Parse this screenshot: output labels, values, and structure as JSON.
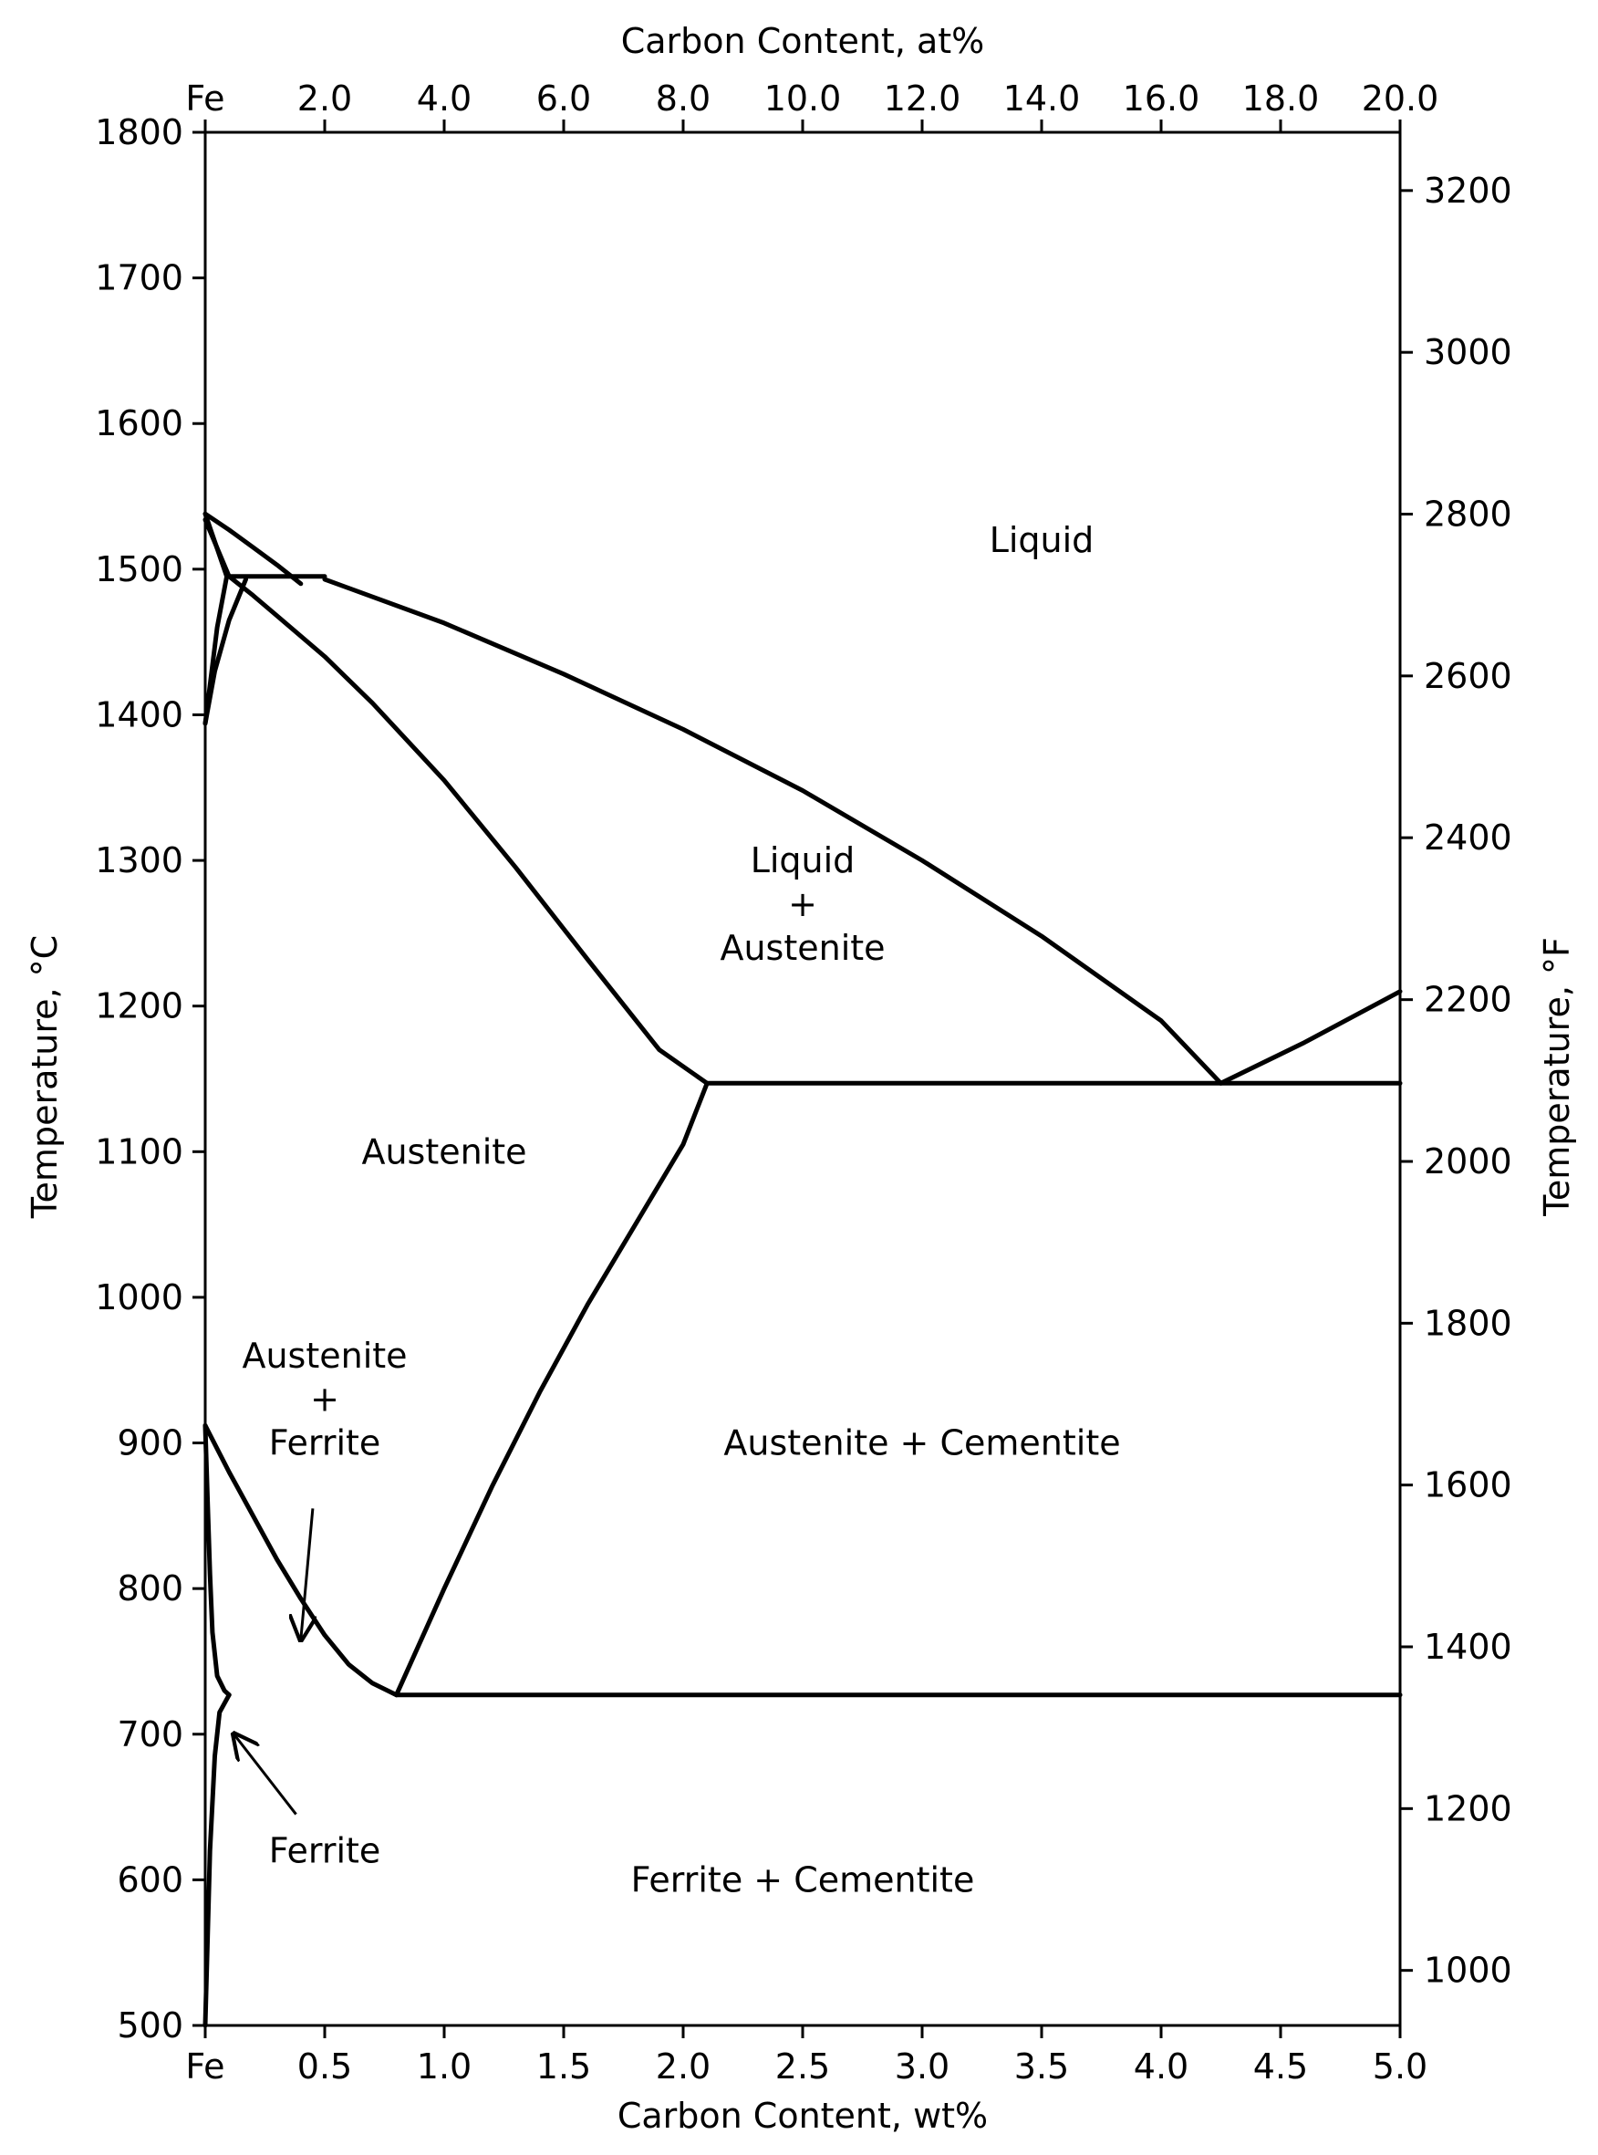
{
  "chart_data": {
    "type": "line",
    "title": "",
    "xlabel": "Carbon Content, wt%",
    "xlabel_top": "Carbon Content, at%",
    "ylabel": "Temperature, °C",
    "ylabel_right": "Temperature, °F",
    "xlim": [
      0,
      5
    ],
    "ylim": [
      500,
      1800
    ],
    "grid": false,
    "x_ticks": [
      {
        "value": 0,
        "label": "Fe"
      },
      {
        "value": 0.5,
        "label": "0.5"
      },
      {
        "value": 1.0,
        "label": "1.0"
      },
      {
        "value": 1.5,
        "label": "1.5"
      },
      {
        "value": 2.0,
        "label": "2.0"
      },
      {
        "value": 2.5,
        "label": "2.5"
      },
      {
        "value": 3.0,
        "label": "3.0"
      },
      {
        "value": 3.5,
        "label": "3.5"
      },
      {
        "value": 4.0,
        "label": "4.0"
      },
      {
        "value": 4.5,
        "label": "4.5"
      },
      {
        "value": 5.0,
        "label": "5.0"
      }
    ],
    "x_top_ticks": [
      {
        "value": 0,
        "label": "Fe"
      },
      {
        "value": 0.5,
        "label": "2.0"
      },
      {
        "value": 1.0,
        "label": "4.0"
      },
      {
        "value": 1.5,
        "label": "6.0"
      },
      {
        "value": 2.0,
        "label": "8.0"
      },
      {
        "value": 2.5,
        "label": "10.0"
      },
      {
        "value": 3.0,
        "label": "12.0"
      },
      {
        "value": 3.5,
        "label": "14.0"
      },
      {
        "value": 4.0,
        "label": "16.0"
      },
      {
        "value": 4.5,
        "label": "18.0"
      },
      {
        "value": 5.0,
        "label": "20.0"
      }
    ],
    "y_ticks": [
      {
        "value": 500,
        "label": "500"
      },
      {
        "value": 600,
        "label": "600"
      },
      {
        "value": 700,
        "label": "700"
      },
      {
        "value": 800,
        "label": "800"
      },
      {
        "value": 900,
        "label": "900"
      },
      {
        "value": 1000,
        "label": "1000"
      },
      {
        "value": 1100,
        "label": "1100"
      },
      {
        "value": 1200,
        "label": "1200"
      },
      {
        "value": 1300,
        "label": "1300"
      },
      {
        "value": 1400,
        "label": "1400"
      },
      {
        "value": 1500,
        "label": "1500"
      },
      {
        "value": 1600,
        "label": "1600"
      },
      {
        "value": 1700,
        "label": "1700"
      },
      {
        "value": 1800,
        "label": "1800"
      }
    ],
    "y_right_ticks": [
      {
        "value": 537.8,
        "label": "1000"
      },
      {
        "value": 648.9,
        "label": "1200"
      },
      {
        "value": 760.0,
        "label": "1400"
      },
      {
        "value": 871.1,
        "label": "1600"
      },
      {
        "value": 982.2,
        "label": "1800"
      },
      {
        "value": 1093.3,
        "label": "2000"
      },
      {
        "value": 1204.4,
        "label": "2200"
      },
      {
        "value": 1315.6,
        "label": "2400"
      },
      {
        "value": 1426.7,
        "label": "2600"
      },
      {
        "value": 1537.8,
        "label": "2800"
      },
      {
        "value": 1648.9,
        "label": "3000"
      },
      {
        "value": 1760.0,
        "label": "3200"
      }
    ],
    "series": [
      {
        "values": [
          [
            0,
            1534
          ],
          [
            0.1,
            1495
          ],
          [
            0.2,
            1482
          ],
          [
            0.3,
            1468
          ],
          [
            0.5,
            1440
          ],
          [
            0.7,
            1408
          ],
          [
            1.0,
            1355
          ],
          [
            1.3,
            1295
          ],
          [
            1.6,
            1232
          ],
          [
            1.9,
            1170
          ],
          [
            2.1,
            1147
          ]
        ]
      },
      {
        "values": [
          [
            0.5,
            1493
          ],
          [
            1.0,
            1463
          ],
          [
            1.5,
            1428
          ],
          [
            2.0,
            1390
          ],
          [
            2.5,
            1348
          ],
          [
            3.0,
            1300
          ],
          [
            3.5,
            1248
          ],
          [
            4.0,
            1190
          ],
          [
            4.25,
            1147
          ]
        ]
      },
      {
        "values": [
          [
            4.25,
            1147
          ],
          [
            4.6,
            1175
          ],
          [
            5.0,
            1210
          ]
        ]
      },
      {
        "values": [
          [
            2.1,
            1147
          ],
          [
            5.0,
            1147
          ]
        ]
      },
      {
        "values": [
          [
            0.8,
            727
          ],
          [
            5.0,
            727
          ]
        ]
      },
      {
        "values": [
          [
            0,
            1538
          ],
          [
            0.1,
            1527
          ],
          [
            0.2,
            1515
          ],
          [
            0.3,
            1503
          ],
          [
            0.4,
            1490
          ]
        ]
      },
      {
        "values": [
          [
            0.1,
            1495
          ],
          [
            0.5,
            1495
          ]
        ]
      },
      {
        "values": [
          [
            0,
            1538
          ],
          [
            0.09,
            1495
          ]
        ]
      },
      {
        "values": [
          [
            0,
            1394
          ],
          [
            0.05,
            1460
          ],
          [
            0.09,
            1495
          ]
        ]
      },
      {
        "values": [
          [
            0,
            1394
          ],
          [
            0.04,
            1430
          ],
          [
            0.1,
            1465
          ],
          [
            0.17,
            1493
          ]
        ]
      },
      {
        "values": [
          [
            0,
            912
          ],
          [
            0.1,
            880
          ],
          [
            0.2,
            850
          ],
          [
            0.3,
            820
          ],
          [
            0.4,
            793
          ],
          [
            0.5,
            768
          ],
          [
            0.6,
            748
          ],
          [
            0.7,
            735
          ],
          [
            0.8,
            727
          ]
        ]
      },
      {
        "values": [
          [
            0.8,
            727
          ],
          [
            1.0,
            800
          ],
          [
            1.2,
            870
          ],
          [
            1.4,
            935
          ],
          [
            1.6,
            995
          ],
          [
            1.8,
            1050
          ],
          [
            2.0,
            1105
          ],
          [
            2.1,
            1147
          ]
        ]
      },
      {
        "values": [
          [
            0,
            912
          ],
          [
            0.01,
            860
          ],
          [
            0.02,
            810
          ],
          [
            0.03,
            770
          ],
          [
            0.05,
            740
          ],
          [
            0.08,
            730
          ],
          [
            0.1,
            727
          ]
        ]
      },
      {
        "values": [
          [
            0,
            500
          ],
          [
            0.02,
            620
          ],
          [
            0.04,
            685
          ],
          [
            0.06,
            715
          ],
          [
            0.1,
            727
          ]
        ]
      }
    ],
    "annotations": [
      {
        "text": "Liquid",
        "x": 3.5,
        "y": 1520
      },
      {
        "text": "Liquid",
        "x": 2.5,
        "y": 1300
      },
      {
        "text": "+",
        "x": 2.5,
        "y": 1270
      },
      {
        "text": "Austenite",
        "x": 2.5,
        "y": 1240
      },
      {
        "text": "Austenite",
        "x": 1.0,
        "y": 1100
      },
      {
        "text": "Austenite",
        "x": 0.5,
        "y": 960
      },
      {
        "text": "+",
        "x": 0.5,
        "y": 930
      },
      {
        "text": "Ferrite",
        "x": 0.5,
        "y": 900
      },
      {
        "text": "Austenite + Cementite",
        "x": 3.0,
        "y": 900
      },
      {
        "text": "Ferrite",
        "x": 0.5,
        "y": 620
      },
      {
        "text": "Ferrite + Cementite",
        "x": 2.5,
        "y": 600
      }
    ],
    "arrows": [
      {
        "from": [
          0.45,
          855
        ],
        "to": [
          0.4,
          765
        ]
      },
      {
        "from": [
          0.38,
          645
        ],
        "to": [
          0.12,
          700
        ]
      }
    ]
  }
}
